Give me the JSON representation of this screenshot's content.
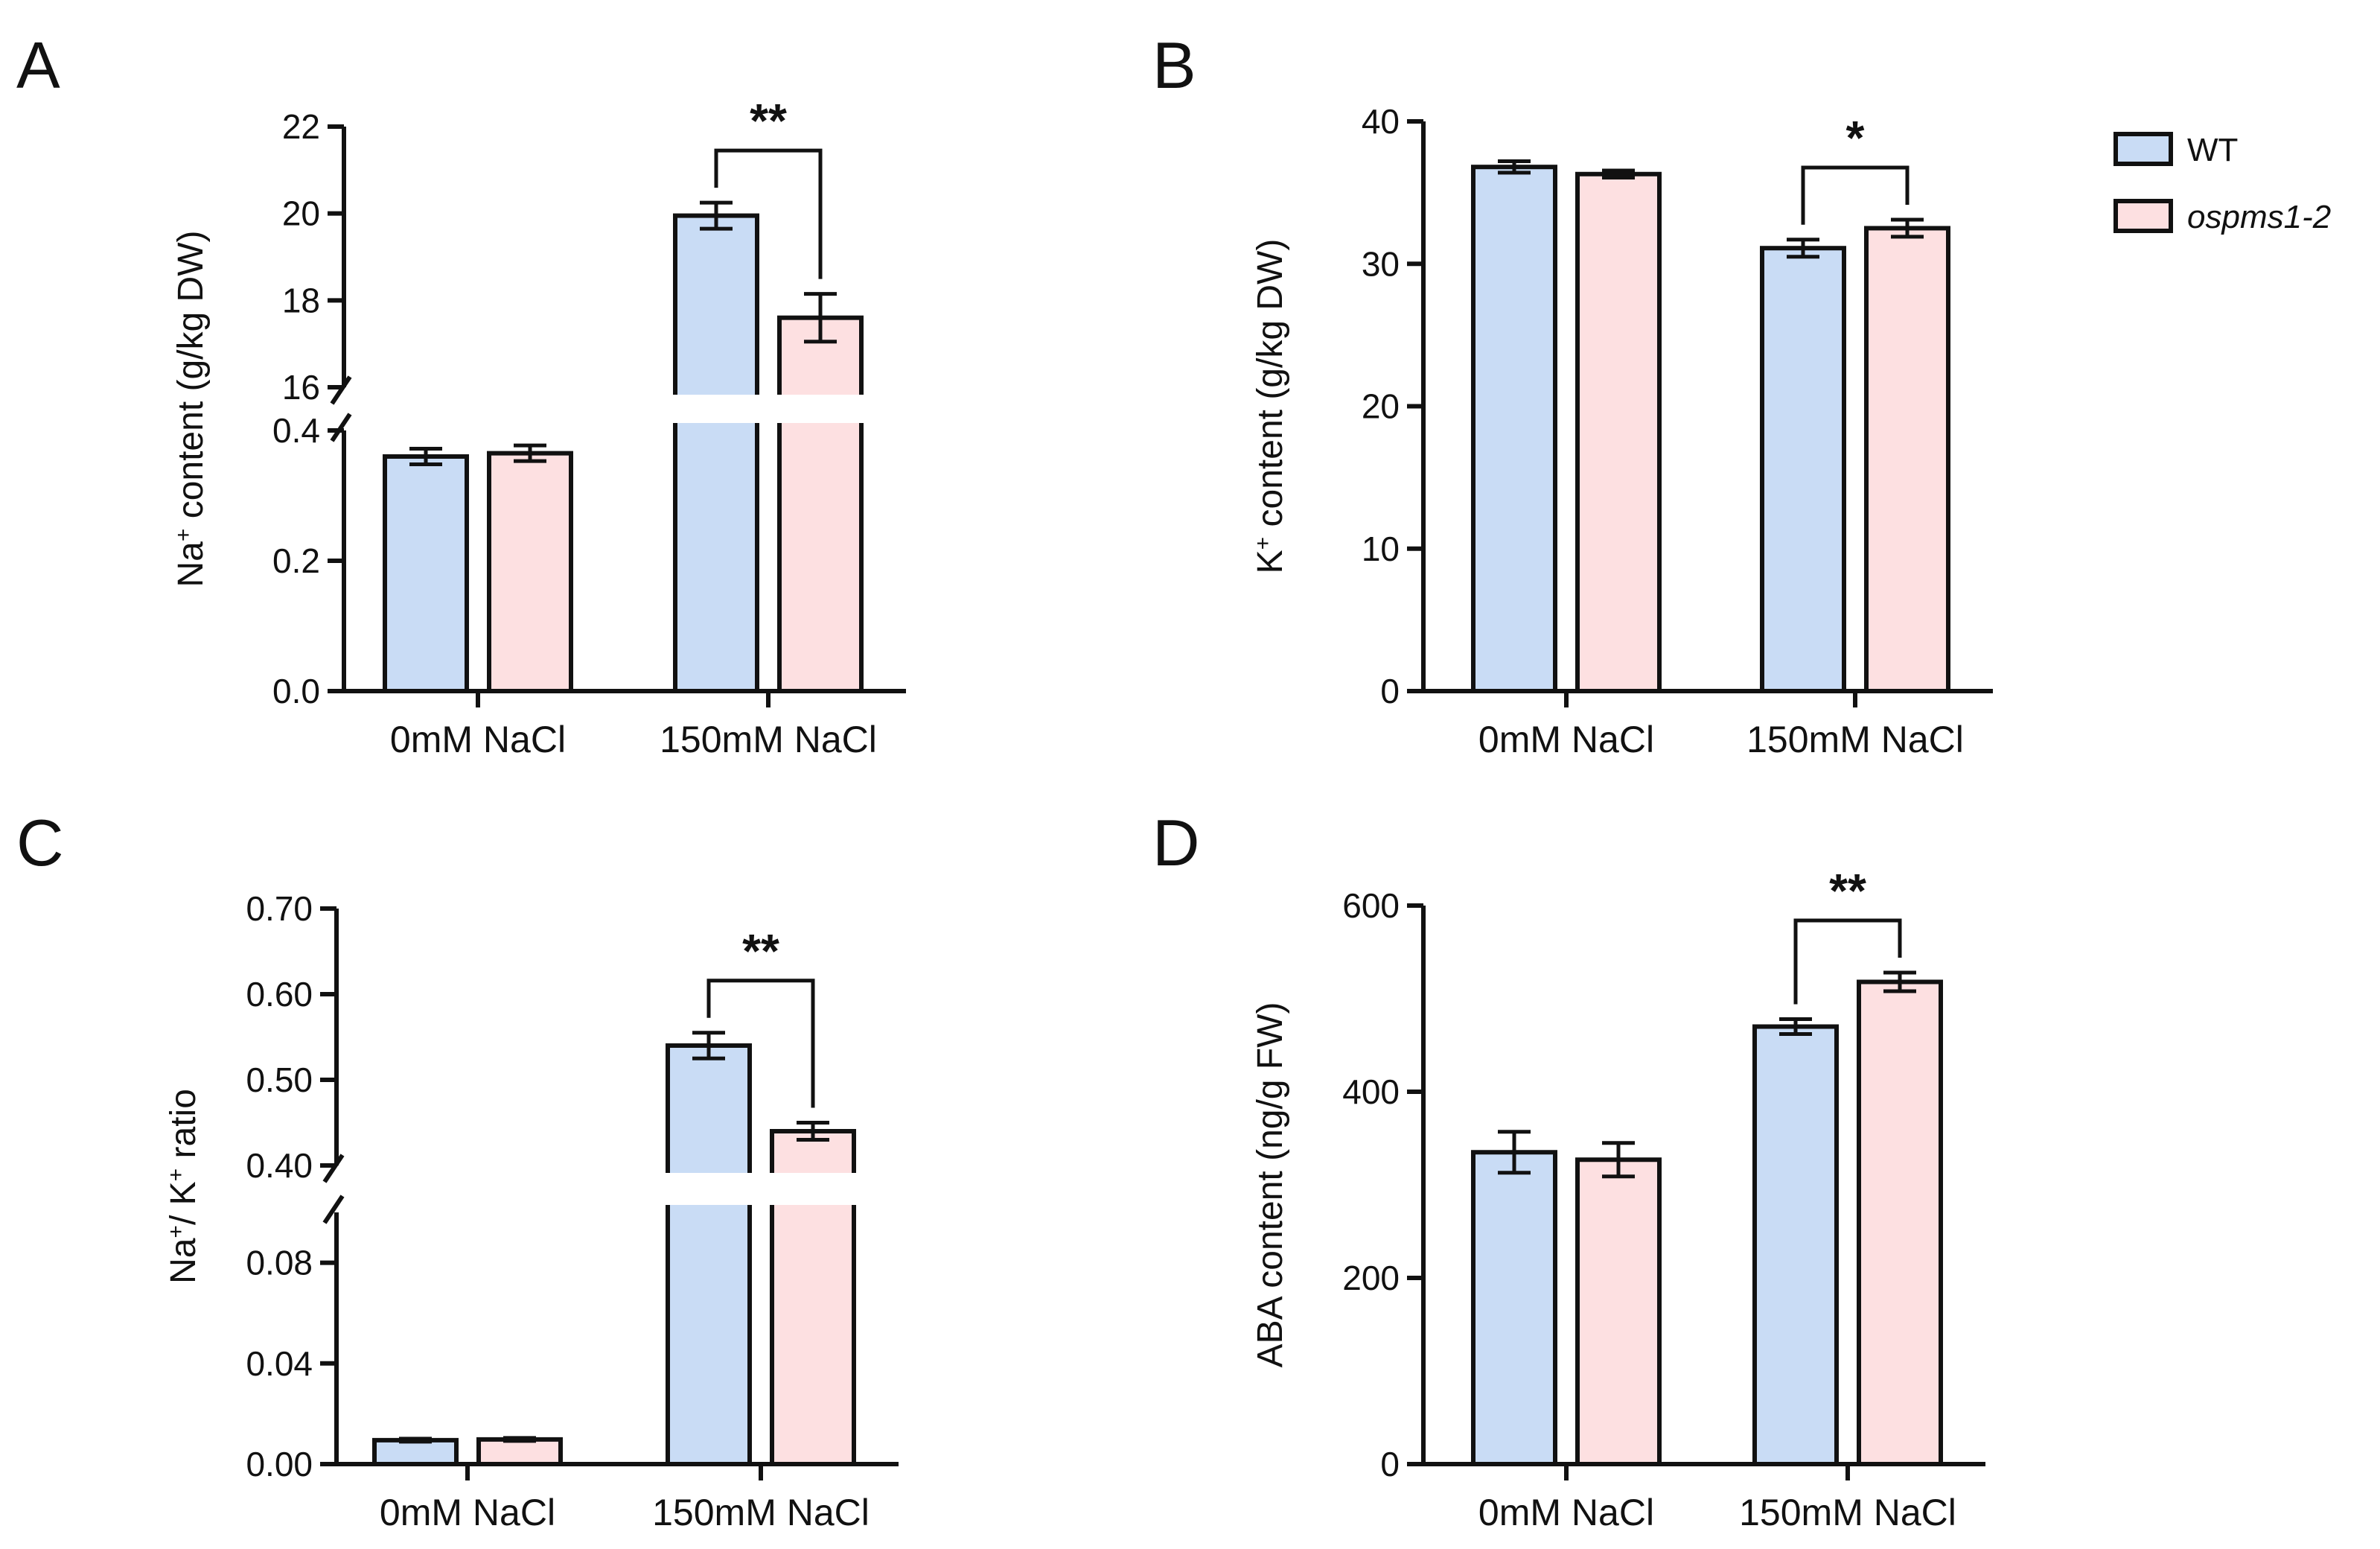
{
  "legend": {
    "colors": [
      "#c9dcf5",
      "#fde0e1"
    ],
    "items": [
      {
        "label": "WT",
        "italic": false
      },
      {
        "label": "ospms1-2",
        "italic": true
      }
    ]
  },
  "chart_data": [
    {
      "panel": "A",
      "type": "bar",
      "categories": [
        "0mM NaCl",
        "150mM NaCl"
      ],
      "series": [
        {
          "name": "WT",
          "values": [
            0.36,
            19.95
          ],
          "errors": [
            0.012,
            0.3
          ]
        },
        {
          "name": "ospms1-2",
          "values": [
            0.365,
            17.6
          ],
          "errors": [
            0.012,
            0.55
          ]
        }
      ],
      "ylabel_main": "Na",
      "ylabel_sup": "+",
      "ylabel_rest": " content (g/kg DW)",
      "axis_break": true,
      "lower_ylim": [
        0,
        0.4
      ],
      "lower_ticks": [
        0.0,
        0.2,
        0.4
      ],
      "lower_tick_labels": [
        "0.0",
        "0.2",
        "0.4"
      ],
      "upper_ylim": [
        16,
        22
      ],
      "upper_ticks": [
        16,
        18,
        20,
        22
      ],
      "upper_tick_labels": [
        "16",
        "18",
        "20",
        "22"
      ],
      "significance": [
        {
          "category": 1,
          "label": "**"
        }
      ]
    },
    {
      "panel": "B",
      "type": "bar",
      "categories": [
        "0mM NaCl",
        "150mM NaCl"
      ],
      "series": [
        {
          "name": "WT",
          "values": [
            36.8,
            31.1
          ],
          "errors": [
            0.4,
            0.6
          ]
        },
        {
          "name": "ospms1-2",
          "values": [
            36.3,
            32.5
          ],
          "errors": [
            0.25,
            0.6
          ]
        }
      ],
      "ylabel_main": "K",
      "ylabel_sup": "+",
      "ylabel_rest": " content (g/kg DW)",
      "axis_break": false,
      "ylim": [
        0,
        40
      ],
      "ticks": [
        0,
        10,
        20,
        30,
        40
      ],
      "tick_labels": [
        "0",
        "10",
        "20",
        "30",
        "40"
      ],
      "significance": [
        {
          "category": 1,
          "label": "*"
        }
      ]
    },
    {
      "panel": "C",
      "type": "bar",
      "categories": [
        "0mM NaCl",
        "150mM NaCl"
      ],
      "series": [
        {
          "name": "WT",
          "values": [
            0.0095,
            0.54
          ],
          "errors": [
            0.0006,
            0.015
          ]
        },
        {
          "name": "ospms1-2",
          "values": [
            0.0098,
            0.44
          ],
          "errors": [
            0.0006,
            0.01
          ]
        }
      ],
      "ylabel_main": "Na",
      "ylabel_sup": "+",
      "ylabel_mid": "/ K",
      "ylabel_sup2": "+",
      "ylabel_rest": " ratio",
      "axis_break": true,
      "lower_ylim": [
        0,
        0.1
      ],
      "lower_ticks": [
        0.0,
        0.04,
        0.08
      ],
      "lower_tick_labels": [
        "0.00",
        "0.04",
        "0.08"
      ],
      "upper_ylim": [
        0.4,
        0.7
      ],
      "upper_ticks": [
        0.4,
        0.5,
        0.6,
        0.7
      ],
      "upper_tick_labels": [
        "0.40",
        "0.50",
        "0.60",
        "0.70"
      ],
      "significance": [
        {
          "category": 1,
          "label": "**"
        }
      ]
    },
    {
      "panel": "D",
      "type": "bar",
      "categories": [
        "0mM NaCl",
        "150mM NaCl"
      ],
      "series": [
        {
          "name": "WT",
          "values": [
            335,
            470
          ],
          "errors": [
            22,
            8
          ]
        },
        {
          "name": "ospms1-2",
          "values": [
            327,
            518
          ],
          "errors": [
            18,
            10
          ]
        }
      ],
      "ylabel_main": "ABA content (ng/g FW)",
      "axis_break": false,
      "ylim": [
        0,
        600
      ],
      "ticks": [
        0,
        200,
        400,
        600
      ],
      "tick_labels": [
        "0",
        "200",
        "400",
        "600"
      ],
      "significance": [
        {
          "category": 1,
          "label": "**"
        }
      ]
    }
  ]
}
